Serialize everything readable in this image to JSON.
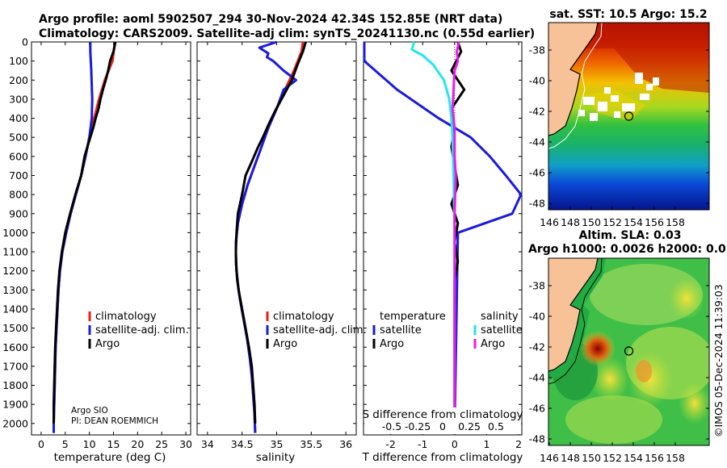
{
  "header": {
    "title_line1": "Argo profile: aoml 5902507_294 30-Nov-2024 42.34S 152.85E (NRT data)",
    "title_line2": "Climatology: CARS2009. Satellite-adj clim: synTS_20241130.nc (0.55d earlier)"
  },
  "colors": {
    "climatology": "#e8201a",
    "satellite": "#1a1ae0",
    "argo": "#000000",
    "sat_cyan": "#22e6ee",
    "argo_magenta": "#e81ee8"
  },
  "depth_axis": {
    "ticks": [
      0,
      100,
      200,
      300,
      400,
      500,
      600,
      700,
      800,
      900,
      1000,
      1100,
      1200,
      1300,
      1400,
      1500,
      1600,
      1700,
      1800,
      1900,
      2000
    ],
    "range": [
      0,
      2060
    ]
  },
  "panels": {
    "temperature": {
      "xlabel": "temperature (deg C)",
      "xticks": [
        0,
        5,
        10,
        15,
        20,
        25,
        30
      ],
      "xlim": [
        -2,
        31
      ],
      "legend": [
        "climatology",
        "satellite-adj. clim.",
        "Argo"
      ],
      "credit_line1": "Argo SIO",
      "credit_line2": "PI: DEAN ROEMMICH"
    },
    "salinity": {
      "xlabel": "salinity",
      "xticks": [
        34,
        34.5,
        35,
        35.5,
        36
      ],
      "xlim": [
        33.85,
        36.15
      ],
      "legend": [
        "climatology",
        "satellite-adj. clim.",
        "Argo"
      ]
    },
    "difference": {
      "xlabel": "T difference from climatology",
      "xticks": [
        -2,
        -1,
        0,
        1,
        2
      ],
      "xticklabels": [
        "-2",
        "-1",
        "0",
        "1",
        "2"
      ],
      "xlim": [
        -2.85,
        2.1
      ],
      "s_axis_label": "S difference from climatology",
      "s_ticklabels": [
        "-0.5",
        "-0.25",
        "0",
        "0.25",
        "0.5"
      ],
      "legend_temp_title": "temperature",
      "legend_sal_title": "salinity",
      "legend_temp": [
        "satellite",
        "Argo"
      ],
      "legend_sal": [
        "satellite",
        "Argo"
      ]
    }
  },
  "maps": {
    "sst": {
      "title": "sat. SST: 10.5 Argo: 15.2"
    },
    "sla": {
      "title_line1": "Altim. SLA: 0.03",
      "title_line2": "Argo h1000: 0.0026 h2000: 0.016"
    },
    "yticks": [
      "-38",
      "-40",
      "-42",
      "-44",
      "-46",
      "-48"
    ],
    "xticks": [
      "146",
      "148",
      "150",
      "152",
      "154",
      "156",
      "158"
    ]
  },
  "watermark": "©IMOS 05-Dec-2024 11:39:03",
  "chart_data": [
    {
      "type": "line",
      "title": "temperature profile",
      "xlabel": "temperature (deg C)",
      "ylabel": "depth",
      "series": [
        {
          "name": "climatology",
          "points": [
            [
              15.3,
              0
            ],
            [
              14.8,
              100
            ],
            [
              13.2,
              200
            ],
            [
              12.0,
              300
            ],
            [
              11.0,
              400
            ],
            [
              10.0,
              500
            ],
            [
              9.2,
              600
            ],
            [
              8.3,
              700
            ],
            [
              7.2,
              800
            ],
            [
              6.1,
              900
            ],
            [
              5.2,
              1000
            ],
            [
              4.4,
              1100
            ],
            [
              3.9,
              1200
            ],
            [
              3.6,
              1300
            ],
            [
              3.4,
              1400
            ],
            [
              3.2,
              1500
            ],
            [
              3.0,
              1600
            ],
            [
              2.9,
              1700
            ],
            [
              2.8,
              1800
            ],
            [
              2.7,
              1900
            ],
            [
              2.6,
              2000
            ],
            [
              2.6,
              2050
            ]
          ]
        },
        {
          "name": "satellite-adj. clim.",
          "points": [
            [
              10.2,
              0
            ],
            [
              10.2,
              50
            ],
            [
              10.4,
              150
            ],
            [
              10.6,
              300
            ],
            [
              10.5,
              400
            ],
            [
              10.0,
              500
            ],
            [
              9.2,
              600
            ],
            [
              8.3,
              700
            ],
            [
              7.2,
              800
            ],
            [
              6.1,
              900
            ],
            [
              5.2,
              1000
            ],
            [
              4.4,
              1100
            ],
            [
              3.9,
              1200
            ],
            [
              3.6,
              1300
            ],
            [
              3.4,
              1400
            ],
            [
              3.2,
              1500
            ],
            [
              3.0,
              1600
            ],
            [
              2.9,
              1700
            ],
            [
              2.8,
              1800
            ],
            [
              2.7,
              1900
            ],
            [
              2.6,
              2000
            ],
            [
              2.6,
              2050
            ]
          ]
        },
        {
          "name": "Argo",
          "points": [
            [
              15.4,
              0
            ],
            [
              15.0,
              50
            ],
            [
              14.3,
              100
            ],
            [
              13.9,
              150
            ],
            [
              13.4,
              200
            ],
            [
              12.8,
              250
            ],
            [
              12.3,
              300
            ],
            [
              11.9,
              350
            ],
            [
              11.3,
              400
            ],
            [
              10.8,
              450
            ],
            [
              10.2,
              500
            ],
            [
              9.6,
              550
            ],
            [
              9.0,
              600
            ],
            [
              8.3,
              700
            ],
            [
              7.1,
              800
            ],
            [
              6.0,
              900
            ],
            [
              5.0,
              1000
            ],
            [
              4.3,
              1100
            ],
            [
              3.8,
              1200
            ],
            [
              3.5,
              1300
            ],
            [
              3.3,
              1400
            ],
            [
              3.1,
              1500
            ],
            [
              2.9,
              1600
            ],
            [
              2.8,
              1700
            ],
            [
              2.7,
              1800
            ],
            [
              2.6,
              1900
            ],
            [
              2.6,
              2000
            ]
          ]
        }
      ]
    },
    {
      "type": "line",
      "title": "salinity profile",
      "xlabel": "salinity",
      "ylabel": "depth",
      "series": [
        {
          "name": "climatology",
          "points": [
            [
              35.38,
              0
            ],
            [
              35.36,
              50
            ],
            [
              35.25,
              150
            ],
            [
              35.12,
              250
            ],
            [
              35.0,
              350
            ],
            [
              34.88,
              450
            ],
            [
              34.78,
              550
            ],
            [
              34.68,
              650
            ],
            [
              34.58,
              750
            ],
            [
              34.5,
              850
            ],
            [
              34.44,
              950
            ],
            [
              34.41,
              1050
            ],
            [
              34.41,
              1150
            ],
            [
              34.43,
              1250
            ],
            [
              34.47,
              1350
            ],
            [
              34.52,
              1450
            ],
            [
              34.57,
              1550
            ],
            [
              34.61,
              1650
            ],
            [
              34.64,
              1750
            ],
            [
              34.66,
              1850
            ],
            [
              34.68,
              1950
            ],
            [
              34.69,
              2050
            ]
          ]
        },
        {
          "name": "satellite-adj. clim.",
          "points": [
            [
              35.0,
              0
            ],
            [
              34.75,
              30
            ],
            [
              34.88,
              60
            ],
            [
              34.86,
              80
            ],
            [
              34.95,
              100
            ],
            [
              35.1,
              150
            ],
            [
              35.28,
              200
            ],
            [
              35.1,
              250
            ],
            [
              35.0,
              350
            ],
            [
              34.88,
              450
            ],
            [
              34.78,
              550
            ],
            [
              34.68,
              650
            ],
            [
              34.58,
              750
            ],
            [
              34.5,
              850
            ],
            [
              34.44,
              950
            ],
            [
              34.41,
              1050
            ],
            [
              34.41,
              1150
            ],
            [
              34.43,
              1250
            ],
            [
              34.47,
              1350
            ],
            [
              34.52,
              1450
            ],
            [
              34.57,
              1550
            ],
            [
              34.61,
              1650
            ],
            [
              34.64,
              1750
            ],
            [
              34.66,
              1850
            ],
            [
              34.68,
              1950
            ],
            [
              34.69,
              2050
            ]
          ]
        },
        {
          "name": "Argo",
          "points": [
            [
              35.42,
              0
            ],
            [
              35.38,
              50
            ],
            [
              35.3,
              120
            ],
            [
              35.22,
              200
            ],
            [
              35.1,
              280
            ],
            [
              34.98,
              360
            ],
            [
              34.9,
              420
            ],
            [
              34.8,
              500
            ],
            [
              34.72,
              560
            ],
            [
              34.65,
              620
            ],
            [
              34.55,
              700
            ],
            [
              34.5,
              800
            ],
            [
              34.44,
              900
            ],
            [
              34.42,
              1000
            ],
            [
              34.41,
              1100
            ],
            [
              34.42,
              1200
            ],
            [
              34.45,
              1300
            ],
            [
              34.5,
              1400
            ],
            [
              34.55,
              1500
            ],
            [
              34.6,
              1600
            ],
            [
              34.64,
              1700
            ],
            [
              34.66,
              1800
            ],
            [
              34.68,
              1900
            ],
            [
              34.69,
              2000
            ]
          ]
        }
      ]
    },
    {
      "type": "line",
      "title": "difference from climatology",
      "xlabel": "T difference from climatology",
      "ylabel": "depth",
      "series": [
        {
          "name": "T satellite",
          "points": [
            [
              -5.1,
              0
            ],
            [
              -4.6,
              50
            ],
            [
              -3.0,
              100
            ],
            [
              -1.8,
              250
            ],
            [
              -0.5,
              400
            ],
            [
              0.5,
              500
            ],
            [
              1.1,
              600
            ],
            [
              1.6,
              700
            ],
            [
              2.1,
              800
            ],
            [
              1.8,
              900
            ],
            [
              0.1,
              1000
            ],
            [
              0,
              2050
            ]
          ]
        },
        {
          "name": "T Argo",
          "points": [
            [
              0.1,
              0
            ],
            [
              0.2,
              50
            ],
            [
              -0.1,
              150
            ],
            [
              0.3,
              250
            ],
            [
              -0.1,
              350
            ],
            [
              0.0,
              450
            ],
            [
              -0.1,
              550
            ],
            [
              0.0,
              650
            ],
            [
              0.1,
              750
            ],
            [
              -0.1,
              850
            ],
            [
              0.1,
              950
            ],
            [
              0.0,
              1050
            ],
            [
              0.1,
              1150
            ],
            [
              0.0,
              1250
            ],
            [
              0.0,
              1350
            ],
            [
              0.0,
              1450
            ],
            [
              0.0,
              1550
            ],
            [
              0.0,
              1650
            ],
            [
              0.0,
              1750
            ],
            [
              0.0,
              1850
            ],
            [
              0.0,
              1950
            ],
            [
              0.0,
              2000
            ]
          ]
        },
        {
          "name": "S satellite",
          "points": [
            [
              -0.38,
              0
            ],
            [
              -0.4,
              40
            ],
            [
              -0.3,
              70
            ],
            [
              -0.2,
              120
            ],
            [
              -0.1,
              200
            ],
            [
              -0.05,
              300
            ],
            [
              -0.03,
              400
            ],
            [
              -0.02,
              500
            ],
            [
              -0.01,
              700
            ],
            [
              0.0,
              1000
            ],
            [
              0.0,
              2050
            ]
          ]
        },
        {
          "name": "S Argo",
          "points": [
            [
              0.04,
              0
            ],
            [
              0.02,
              50
            ],
            [
              0.03,
              100
            ],
            [
              0.0,
              150
            ],
            [
              -0.01,
              250
            ],
            [
              -0.02,
              350
            ],
            [
              0.0,
              450
            ],
            [
              0.0,
              600
            ],
            [
              0.01,
              700
            ],
            [
              0.0,
              900
            ],
            [
              0.0,
              1100
            ],
            [
              0.0,
              1300
            ],
            [
              0.0,
              1600
            ],
            [
              0.0,
              2000
            ]
          ]
        }
      ]
    }
  ]
}
